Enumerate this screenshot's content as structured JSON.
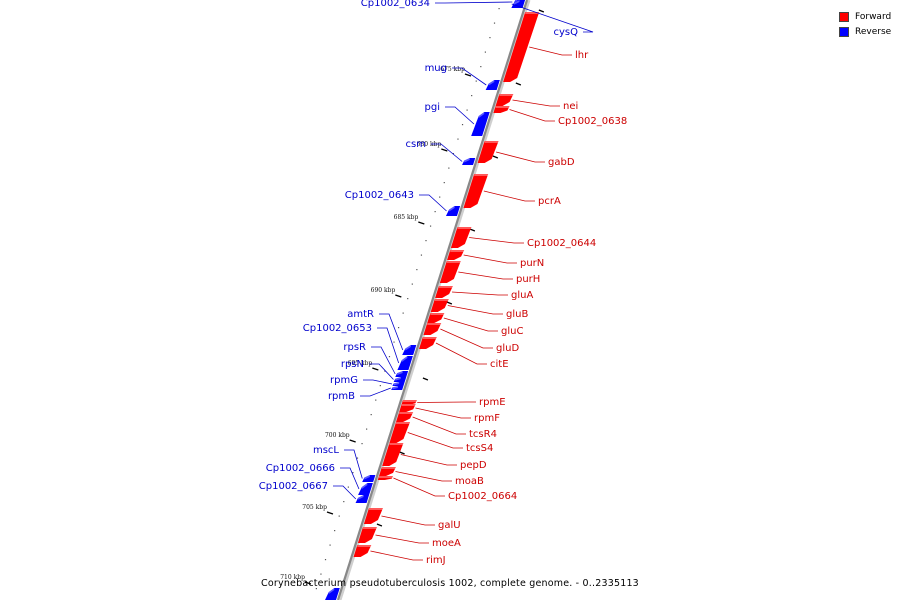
{
  "caption": "Corynebacterium pseudotuberculosis 1002, complete genome. - 0..2335113",
  "legend": [
    {
      "label": "Forward",
      "color": "#ff0000"
    },
    {
      "label": "Reverse",
      "color": "#0000ff"
    }
  ],
  "colors": {
    "forward": "#ff0000",
    "reverse": "#0000ff",
    "backbone": "#888888",
    "forward_label": "#cc0000",
    "reverse_label": "#0000cc"
  },
  "ticks": [
    {
      "label": "675 kbp",
      "kbp": 675
    },
    {
      "label": "680 kbp",
      "kbp": 680
    },
    {
      "label": "685 kbp",
      "kbp": 685
    },
    {
      "label": "690 kbp",
      "kbp": 690
    },
    {
      "label": "695 kbp",
      "kbp": 695
    },
    {
      "label": "700 kbp",
      "kbp": 700
    },
    {
      "label": "705 kbp",
      "kbp": 705
    },
    {
      "label": "710 kbp",
      "kbp": 710
    }
  ],
  "genes": [
    {
      "name": "Cp1002_0634",
      "strand": "reverse"
    },
    {
      "name": "cysQ",
      "strand": "reverse"
    },
    {
      "name": "lhr",
      "strand": "forward"
    },
    {
      "name": "mug",
      "strand": "reverse"
    },
    {
      "name": "nei",
      "strand": "forward"
    },
    {
      "name": "Cp1002_0638",
      "strand": "forward"
    },
    {
      "name": "pgi",
      "strand": "reverse"
    },
    {
      "name": "csm",
      "strand": "reverse"
    },
    {
      "name": "gabD",
      "strand": "forward"
    },
    {
      "name": "Cp1002_0643",
      "strand": "reverse"
    },
    {
      "name": "pcrA",
      "strand": "forward"
    },
    {
      "name": "Cp1002_0644",
      "strand": "forward"
    },
    {
      "name": "purN",
      "strand": "forward"
    },
    {
      "name": "purH",
      "strand": "forward"
    },
    {
      "name": "gluA",
      "strand": "forward"
    },
    {
      "name": "gluB",
      "strand": "forward"
    },
    {
      "name": "gluC",
      "strand": "forward"
    },
    {
      "name": "gluD",
      "strand": "forward"
    },
    {
      "name": "citE",
      "strand": "forward"
    },
    {
      "name": "amtR",
      "strand": "reverse"
    },
    {
      "name": "Cp1002_0653",
      "strand": "reverse"
    },
    {
      "name": "rpsR",
      "strand": "reverse"
    },
    {
      "name": "rpsN",
      "strand": "reverse"
    },
    {
      "name": "rpmG",
      "strand": "reverse"
    },
    {
      "name": "rpmB",
      "strand": "reverse"
    },
    {
      "name": "rpmE",
      "strand": "forward"
    },
    {
      "name": "rpmF",
      "strand": "forward"
    },
    {
      "name": "tcsR4",
      "strand": "forward"
    },
    {
      "name": "tcsS4",
      "strand": "forward"
    },
    {
      "name": "pepD",
      "strand": "forward"
    },
    {
      "name": "moaB",
      "strand": "forward"
    },
    {
      "name": "Cp1002_0664",
      "strand": "forward"
    },
    {
      "name": "mscL",
      "strand": "reverse"
    },
    {
      "name": "Cp1002_0666",
      "strand": "reverse"
    },
    {
      "name": "Cp1002_0667",
      "strand": "reverse"
    },
    {
      "name": "galU",
      "strand": "forward"
    },
    {
      "name": "moeA",
      "strand": "forward"
    },
    {
      "name": "rimJ",
      "strand": "forward"
    },
    {
      "name": "",
      "strand": "reverse"
    }
  ]
}
